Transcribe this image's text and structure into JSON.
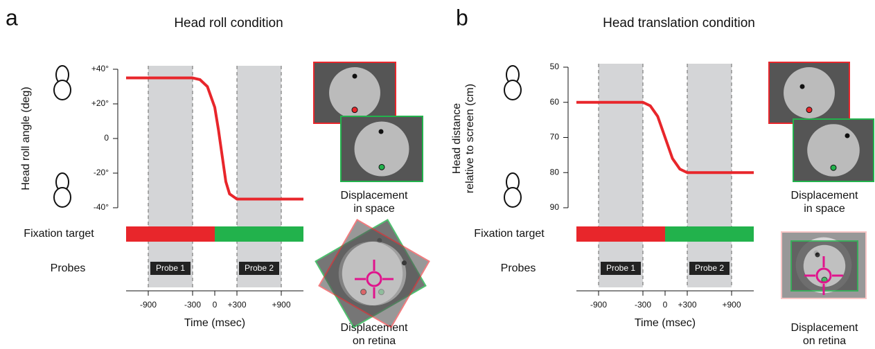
{
  "chart_data": [
    {
      "type": "line",
      "panel_letter": "a",
      "title": "Head roll condition",
      "ylabel": [
        "Head roll angle (deg)"
      ],
      "xlabel": "Time (msec)",
      "xlim": [
        -1200,
        1200
      ],
      "xticks": [
        -900,
        -300,
        0,
        {
          "value": 300,
          "label": "+300"
        },
        {
          "value": 900,
          "label": "+900"
        }
      ],
      "ylim": [
        -40,
        40
      ],
      "yticks": [
        {
          "value": 40,
          "label": "+40°"
        },
        {
          "value": 20,
          "label": "+20°"
        },
        0,
        {
          "value": -20,
          "label": "-20°"
        },
        {
          "value": -40,
          "label": "-40°"
        }
      ],
      "x": [
        -1200,
        -300,
        -200,
        -100,
        0,
        50,
        100,
        150,
        200,
        300,
        1200
      ],
      "values": [
        35,
        35,
        34,
        30,
        18,
        5,
        -10,
        -25,
        -32,
        -35,
        -35
      ],
      "color": "#e8262b",
      "fixation_target": {
        "label": "Fixation target",
        "segments": [
          {
            "range": [
              -1200,
              0
            ],
            "color": "#e8262b"
          },
          {
            "range": [
              0,
              1200
            ],
            "color": "#22b24c"
          }
        ]
      },
      "probes": {
        "label": "Probes",
        "windows": [
          {
            "label": "Probe 1",
            "range": [
              -900,
              -300
            ]
          },
          {
            "label": "Probe 2",
            "range": [
              300,
              900
            ]
          }
        ]
      },
      "space_caption": [
        "Displacement",
        "in space"
      ],
      "retina_caption": [
        "Displacement",
        "on retina"
      ]
    },
    {
      "type": "line",
      "panel_letter": "b",
      "title": "Head translation condition",
      "ylabel": [
        "Head distance",
        "relative to screen (cm)"
      ],
      "xlabel": "Time (msec)",
      "xlim": [
        -1200,
        1200
      ],
      "xticks": [
        -900,
        -300,
        0,
        {
          "value": 300,
          "label": "+300"
        },
        {
          "value": 900,
          "label": "+900"
        }
      ],
      "ylim": [
        90,
        50
      ],
      "yticks": [
        50,
        60,
        70,
        80,
        90
      ],
      "x": [
        -1200,
        -300,
        -200,
        -100,
        0,
        100,
        200,
        300,
        1200
      ],
      "values": [
        60,
        60,
        61,
        64,
        70,
        76,
        79,
        80,
        80
      ],
      "color": "#e8262b",
      "fixation_target": {
        "label": "Fixation target",
        "segments": [
          {
            "range": [
              -1200,
              0
            ],
            "color": "#e8262b"
          },
          {
            "range": [
              0,
              1200
            ],
            "color": "#22b24c"
          }
        ]
      },
      "probes": {
        "label": "Probes",
        "windows": [
          {
            "label": "Probe 1",
            "range": [
              -900,
              -300
            ]
          },
          {
            "label": "Probe 2",
            "range": [
              300,
              900
            ]
          }
        ]
      },
      "space_caption": [
        "Displacement",
        "in space"
      ],
      "retina_caption": [
        "Displacement",
        "on retina"
      ]
    }
  ]
}
